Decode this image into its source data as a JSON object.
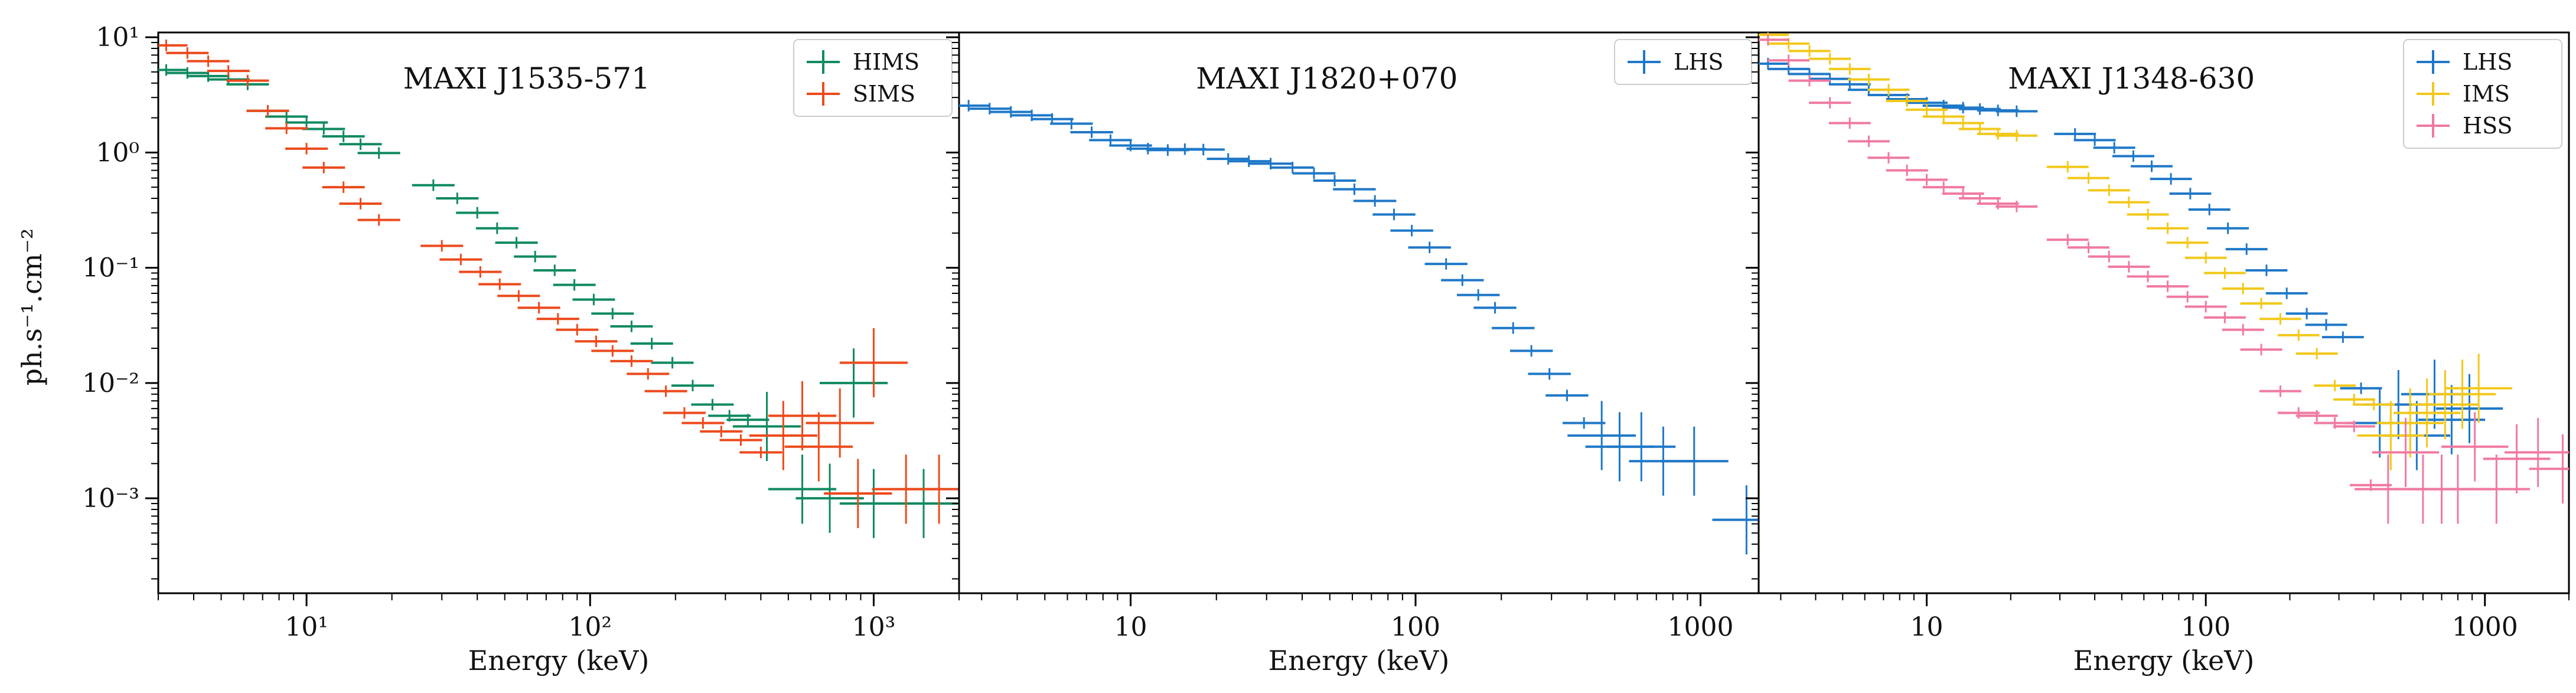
{
  "chart_data": [
    {
      "type": "scatter",
      "title": "MAXI J1535-571",
      "xlabel": "Energy (keV)",
      "ylabel": "ph.s⁻¹.cm⁻²",
      "xscale": "log",
      "yscale": "log",
      "xlim": [
        3,
        2000
      ],
      "ylim": [
        0.00015,
        11
      ],
      "xticks": [
        10,
        100,
        1000
      ],
      "xtick_labels": [
        "10¹",
        "10²",
        "10³"
      ],
      "yticks": [
        0.001,
        0.01,
        0.1,
        1,
        10
      ],
      "ytick_labels": [
        "10⁻³",
        "10⁻²",
        "10⁻¹",
        "10⁰",
        "10¹"
      ],
      "legend_position": "top-right",
      "series": [
        {
          "name": "HIMS",
          "color": "#0f8a5f",
          "points": [
            [
              3.2,
              5.2
            ],
            [
              3.8,
              4.9
            ],
            [
              4.5,
              4.6
            ],
            [
              5.3,
              4.3
            ],
            [
              6.2,
              3.9
            ],
            [
              7.3,
              2.3
            ],
            [
              8.5,
              2.05
            ],
            [
              10,
              1.82
            ],
            [
              11.5,
              1.6
            ],
            [
              13.5,
              1.38
            ],
            [
              15.5,
              1.18
            ],
            [
              18,
              0.99
            ],
            [
              28,
              0.52
            ],
            [
              34,
              0.4
            ],
            [
              40,
              0.3
            ],
            [
              47,
              0.22
            ],
            [
              55,
              0.165
            ],
            [
              64,
              0.125
            ],
            [
              75,
              0.095
            ],
            [
              88,
              0.071
            ],
            [
              103,
              0.053
            ],
            [
              120,
              0.04
            ],
            [
              140,
              0.031
            ],
            [
              165,
              0.022
            ],
            [
              195,
              0.015
            ],
            [
              230,
              0.0095
            ],
            [
              270,
              0.0065
            ],
            [
              310,
              0.0052
            ],
            [
              360,
              0.0048
            ],
            [
              420,
              0.0042
            ],
            [
              560,
              0.0012
            ],
            [
              700,
              0.001
            ],
            [
              850,
              0.01
            ],
            [
              1000,
              0.0009
            ],
            [
              1500,
              0.0009
            ]
          ]
        },
        {
          "name": "SIMS",
          "color": "#ec4a1c",
          "points": [
            [
              3.2,
              8.5
            ],
            [
              3.8,
              7.3
            ],
            [
              4.5,
              6.2
            ],
            [
              5.3,
              5.1
            ],
            [
              6.2,
              4.2
            ],
            [
              7.3,
              2.3
            ],
            [
              8.5,
              1.62
            ],
            [
              10,
              1.08
            ],
            [
              11.5,
              0.74
            ],
            [
              13.5,
              0.5
            ],
            [
              15.5,
              0.36
            ],
            [
              18,
              0.26
            ],
            [
              30,
              0.155
            ],
            [
              35,
              0.118
            ],
            [
              41,
              0.092
            ],
            [
              48,
              0.072
            ],
            [
              56,
              0.057
            ],
            [
              66,
              0.045
            ],
            [
              77,
              0.036
            ],
            [
              90,
              0.029
            ],
            [
              105,
              0.023
            ],
            [
              120,
              0.019
            ],
            [
              140,
              0.0155
            ],
            [
              160,
              0.012
            ],
            [
              185,
              0.0085
            ],
            [
              215,
              0.0055
            ],
            [
              250,
              0.0045
            ],
            [
              290,
              0.0038
            ],
            [
              340,
              0.0032
            ],
            [
              400,
              0.0025
            ],
            [
              480,
              0.0035
            ],
            [
              560,
              0.0052
            ],
            [
              640,
              0.0028
            ],
            [
              760,
              0.0045
            ],
            [
              880,
              0.0011
            ],
            [
              1000,
              0.015
            ],
            [
              1300,
              0.0012
            ],
            [
              1700,
              0.0012
            ]
          ]
        }
      ]
    },
    {
      "type": "scatter",
      "title": "MAXI J1820+070",
      "xlabel": "Energy (keV)",
      "ylabel": "",
      "xscale": "log",
      "yscale": "log",
      "xlim": [
        2.5,
        1600
      ],
      "ylim": [
        0.00015,
        11
      ],
      "xticks": [
        10,
        100,
        1000
      ],
      "xtick_labels": [
        "10",
        "100",
        "1000"
      ],
      "legend_position": "top-right",
      "series": [
        {
          "name": "LHS",
          "color": "#1f78c8",
          "points": [
            [
              2.7,
              2.55
            ],
            [
              3.2,
              2.4
            ],
            [
              3.8,
              2.25
            ],
            [
              4.5,
              2.1
            ],
            [
              5.3,
              1.95
            ],
            [
              6.2,
              1.78
            ],
            [
              7.3,
              1.5
            ],
            [
              8.5,
              1.28
            ],
            [
              10,
              1.15
            ],
            [
              11.5,
              1.08
            ],
            [
              13.5,
              1.05
            ],
            [
              15.5,
              1.07
            ],
            [
              18,
              1.06
            ],
            [
              22,
              0.88
            ],
            [
              26,
              0.84
            ],
            [
              31,
              0.8
            ],
            [
              37,
              0.74
            ],
            [
              44,
              0.66
            ],
            [
              52,
              0.57
            ],
            [
              61,
              0.48
            ],
            [
              72,
              0.38
            ],
            [
              84,
              0.29
            ],
            [
              97,
              0.21
            ],
            [
              112,
              0.15
            ],
            [
              128,
              0.108
            ],
            [
              146,
              0.078
            ],
            [
              166,
              0.058
            ],
            [
              190,
              0.045
            ],
            [
              220,
              0.03
            ],
            [
              255,
              0.019
            ],
            [
              295,
              0.012
            ],
            [
              340,
              0.0078
            ],
            [
              390,
              0.0045
            ],
            [
              450,
              0.0035
            ],
            [
              520,
              0.0028
            ],
            [
              620,
              0.0028
            ],
            [
              740,
              0.0021
            ],
            [
              950,
              0.0021
            ],
            [
              1450,
              0.00065
            ]
          ]
        }
      ]
    },
    {
      "type": "scatter",
      "title": "MAXI J1348-630",
      "xlabel": "Energy (keV)",
      "ylabel": "",
      "xscale": "log",
      "yscale": "log",
      "xlim": [
        2.5,
        2000
      ],
      "ylim": [
        0.00015,
        11
      ],
      "xticks": [
        10,
        100,
        1000
      ],
      "xtick_labels": [
        "10",
        "100",
        "1000"
      ],
      "legend_position": "top-right",
      "series": [
        {
          "name": "LHS",
          "color": "#1f78c8",
          "points": [
            [
              2.7,
              5.9
            ],
            [
              3.2,
              5.3
            ],
            [
              3.8,
              4.8
            ],
            [
              4.5,
              4.35
            ],
            [
              5.3,
              3.9
            ],
            [
              6.2,
              3.5
            ],
            [
              7.3,
              3.15
            ],
            [
              8.5,
              2.9
            ],
            [
              10,
              2.7
            ],
            [
              11.5,
              2.55
            ],
            [
              13.5,
              2.45
            ],
            [
              15.5,
              2.38
            ],
            [
              18,
              2.32
            ],
            [
              21,
              2.28
            ],
            [
              34,
              1.45
            ],
            [
              40,
              1.28
            ],
            [
              47,
              1.1
            ],
            [
              55,
              0.93
            ],
            [
              64,
              0.76
            ],
            [
              75,
              0.59
            ],
            [
              88,
              0.44
            ],
            [
              103,
              0.32
            ],
            [
              120,
              0.22
            ],
            [
              140,
              0.145
            ],
            [
              165,
              0.095
            ],
            [
              195,
              0.06
            ],
            [
              230,
              0.04
            ],
            [
              270,
              0.032
            ],
            [
              310,
              0.025
            ],
            [
              360,
              0.009
            ],
            [
              420,
              0.0045
            ],
            [
              490,
              0.0065
            ],
            [
              570,
              0.0035
            ],
            [
              660,
              0.008
            ],
            [
              760,
              0.0048
            ],
            [
              880,
              0.006
            ]
          ]
        },
        {
          "name": "IMS",
          "color": "#f2c81a",
          "points": [
            [
              2.7,
              10.5
            ],
            [
              3.2,
              8.8
            ],
            [
              3.8,
              7.6
            ],
            [
              4.5,
              6.5
            ],
            [
              5.3,
              5.3
            ],
            [
              6.2,
              4.3
            ],
            [
              7.3,
              3.5
            ],
            [
              8.5,
              2.8
            ],
            [
              10,
              2.35
            ],
            [
              11.5,
              2.05
            ],
            [
              13.5,
              1.8
            ],
            [
              15.5,
              1.6
            ],
            [
              18,
              1.45
            ],
            [
              21,
              1.4
            ],
            [
              32,
              0.75
            ],
            [
              38,
              0.6
            ],
            [
              45,
              0.47
            ],
            [
              53,
              0.37
            ],
            [
              62,
              0.29
            ],
            [
              73,
              0.22
            ],
            [
              86,
              0.165
            ],
            [
              100,
              0.122
            ],
            [
              117,
              0.09
            ],
            [
              136,
              0.066
            ],
            [
              158,
              0.049
            ],
            [
              185,
              0.036
            ],
            [
              215,
              0.026
            ],
            [
              250,
              0.018
            ],
            [
              290,
              0.0095
            ],
            [
              340,
              0.0072
            ],
            [
              400,
              0.0065
            ],
            [
              460,
              0.0035
            ],
            [
              540,
              0.0045
            ],
            [
              620,
              0.0055
            ],
            [
              720,
              0.0065
            ],
            [
              830,
              0.008
            ],
            [
              950,
              0.009
            ]
          ]
        },
        {
          "name": "HSS",
          "color": "#f07aa0",
          "points": [
            [
              2.7,
              9.5
            ],
            [
              3.2,
              6.3
            ],
            [
              3.8,
              4.2
            ],
            [
              4.5,
              2.7
            ],
            [
              5.3,
              1.8
            ],
            [
              6.2,
              1.25
            ],
            [
              7.3,
              0.9
            ],
            [
              8.5,
              0.7
            ],
            [
              10,
              0.58
            ],
            [
              11.5,
              0.5
            ],
            [
              13.5,
              0.44
            ],
            [
              15.5,
              0.4
            ],
            [
              18,
              0.36
            ],
            [
              21,
              0.34
            ],
            [
              32,
              0.175
            ],
            [
              38,
              0.15
            ],
            [
              45,
              0.125
            ],
            [
              53,
              0.102
            ],
            [
              62,
              0.084
            ],
            [
              73,
              0.069
            ],
            [
              86,
              0.056
            ],
            [
              100,
              0.046
            ],
            [
              117,
              0.037
            ],
            [
              136,
              0.029
            ],
            [
              158,
              0.0195
            ],
            [
              185,
              0.0085
            ],
            [
              215,
              0.0055
            ],
            [
              250,
              0.0052
            ],
            [
              290,
              0.0045
            ],
            [
              340,
              0.0042
            ],
            [
              390,
              0.0013
            ],
            [
              450,
              0.0012
            ],
            [
              520,
              0.0025
            ],
            [
              600,
              0.0012
            ],
            [
              700,
              0.0012
            ],
            [
              800,
              0.0012
            ],
            [
              920,
              0.0028
            ],
            [
              1100,
              0.0012
            ],
            [
              1300,
              0.0022
            ],
            [
              1550,
              0.0025
            ],
            [
              1900,
              0.0018
            ]
          ]
        }
      ]
    }
  ]
}
